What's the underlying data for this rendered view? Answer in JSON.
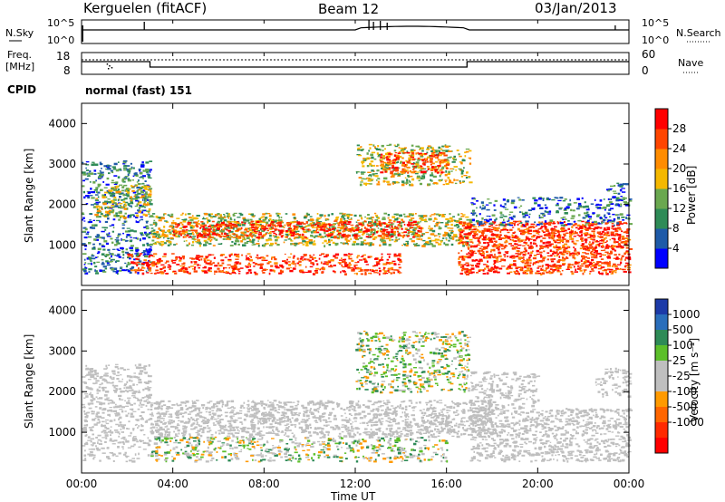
{
  "header": {
    "site": "Kerguelen (fitACF)",
    "beam": "Beam 12",
    "date": "03/Jan/2013"
  },
  "noise_panel": {
    "left_label": "N.Sky",
    "right_label": "N.Search",
    "ticks_left": [
      "10^5",
      "10^0"
    ],
    "ticks_right": [
      "10^5",
      "10^0"
    ]
  },
  "freq_panel": {
    "left_label_1": "Freq.",
    "left_label_2": "[MHz]",
    "left_ticks": [
      "18",
      "8"
    ],
    "right_label": "Nave",
    "right_ticks": [
      "60",
      "0"
    ]
  },
  "cpid": {
    "label": "CPID",
    "value": "normal (fast) 151"
  },
  "colors": {
    "power": [
      "#0000ff",
      "#1e5aa8",
      "#2e8b57",
      "#6aa84f",
      "#f5b800",
      "#ff8c00",
      "#ff4500",
      "#ff0000"
    ],
    "velocity": [
      "#1c3aa8",
      "#2a6ebb",
      "#2e8b57",
      "#5cbf2a",
      "#bfbfbf",
      "#bfbfbf",
      "#ff9a00",
      "#ff6600",
      "#ff2a00",
      "#ff0000"
    ]
  },
  "chart_data": [
    {
      "type": "heatmap",
      "name": "power",
      "ylabel": "Slant Range [km]",
      "yticks": [
        "1000",
        "2000",
        "3000",
        "4000"
      ],
      "ylim": [
        0,
        4500
      ],
      "xlim": [
        "00:00",
        "24:00"
      ],
      "colorbar_label": "Power [dB]",
      "colorbar_ticks": [
        "4",
        "8",
        "12",
        "16",
        "20",
        "24",
        "28"
      ],
      "grid": false
    },
    {
      "type": "heatmap",
      "name": "velocity",
      "ylabel": "Slant Range [km]",
      "yticks": [
        "1000",
        "2000",
        "3000",
        "4000"
      ],
      "ylim": [
        0,
        4500
      ],
      "xlim": [
        "00:00",
        "24:00"
      ],
      "colorbar_label": "Velocity [m s⁻¹]",
      "colorbar_ticks": [
        "1000",
        "500",
        "100",
        "25",
        "-25",
        "-100",
        "-500",
        "-1000"
      ],
      "grid": false
    }
  ],
  "x_axis": {
    "label": "Time UT",
    "ticks": [
      "00:00",
      "04:00",
      "08:00",
      "12:00",
      "16:00",
      "20:00",
      "00:00"
    ]
  }
}
